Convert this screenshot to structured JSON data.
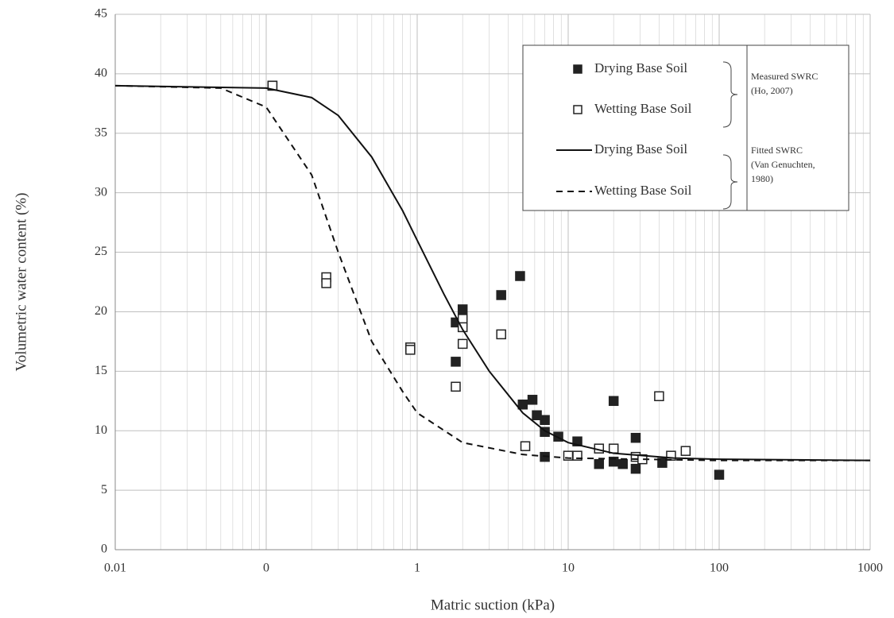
{
  "chart_data": {
    "type": "scatter",
    "x_label": "Matric suction (kPa)",
    "y_label": "Volumetric water content (%)",
    "xscale": "log",
    "xlim": [
      0.01,
      1000
    ],
    "xticks": [
      0.01,
      {
        "value": 0.1,
        "label": "0"
      },
      1,
      10,
      100,
      1000
    ],
    "ylim": [
      0,
      45
    ],
    "yticks": [
      0,
      5,
      10,
      15,
      20,
      25,
      30,
      35,
      40,
      45
    ],
    "grid": true,
    "legend": "upper right",
    "series": [
      {
        "name": "Drying Base Soil",
        "marker": "filled-square",
        "color": "#222222",
        "x": [
          0.11,
          1.8,
          1.8,
          2.0,
          3.6,
          4.8,
          5.0,
          5.8,
          6.2,
          7.0,
          7.0,
          7.0,
          8.6,
          11.5,
          16,
          20,
          20,
          23,
          28,
          28,
          42,
          100
        ],
        "values": [
          39.0,
          19.1,
          15.8,
          20.2,
          21.4,
          23.0,
          12.2,
          12.6,
          11.3,
          10.9,
          9.9,
          7.8,
          9.5,
          9.1,
          7.2,
          12.5,
          7.4,
          7.2,
          9.4,
          6.8,
          7.3,
          6.3
        ]
      },
      {
        "name": "Wetting Base Soil",
        "marker": "open-square",
        "color": "#222222",
        "x": [
          0.11,
          0.25,
          0.25,
          0.9,
          0.9,
          1.8,
          2.0,
          2.0,
          2.0,
          3.6,
          5.2,
          10,
          11.5,
          16,
          20,
          28,
          31,
          40,
          48,
          60
        ],
        "values": [
          39.0,
          22.9,
          22.4,
          17.0,
          16.8,
          13.7,
          19.4,
          18.7,
          17.3,
          18.1,
          8.7,
          7.9,
          7.9,
          8.5,
          8.5,
          7.8,
          7.6,
          12.9,
          7.9,
          8.3
        ]
      },
      {
        "name": "Drying Base Soil",
        "line": "solid",
        "color": "#111111",
        "x": [
          0.01,
          0.1,
          0.2,
          0.3,
          0.5,
          0.8,
          1,
          1.5,
          2,
          3,
          5,
          7,
          10,
          20,
          50,
          100,
          1000
        ],
        "values": [
          39,
          38.8,
          38.0,
          36.5,
          33,
          28.5,
          26,
          21.5,
          18.5,
          15,
          11.5,
          10,
          9,
          8.1,
          7.7,
          7.6,
          7.5
        ]
      },
      {
        "name": "Wetting Base Soil",
        "line": "dashed",
        "color": "#111111",
        "x": [
          0.01,
          0.05,
          0.1,
          0.2,
          0.3,
          0.5,
          0.8,
          1,
          2,
          5,
          10,
          100,
          1000
        ],
        "values": [
          39,
          38.8,
          37.2,
          31.5,
          25,
          17.5,
          13.3,
          11.5,
          9,
          8,
          7.7,
          7.5,
          7.5
        ]
      }
    ],
    "annotations": [
      {
        "lines": [
          "Measured SWRC",
          "(Ho, 2007)"
        ]
      },
      {
        "lines": [
          "Fitted SWRC",
          "(Van Genuchten,",
          "1980)"
        ]
      }
    ]
  }
}
